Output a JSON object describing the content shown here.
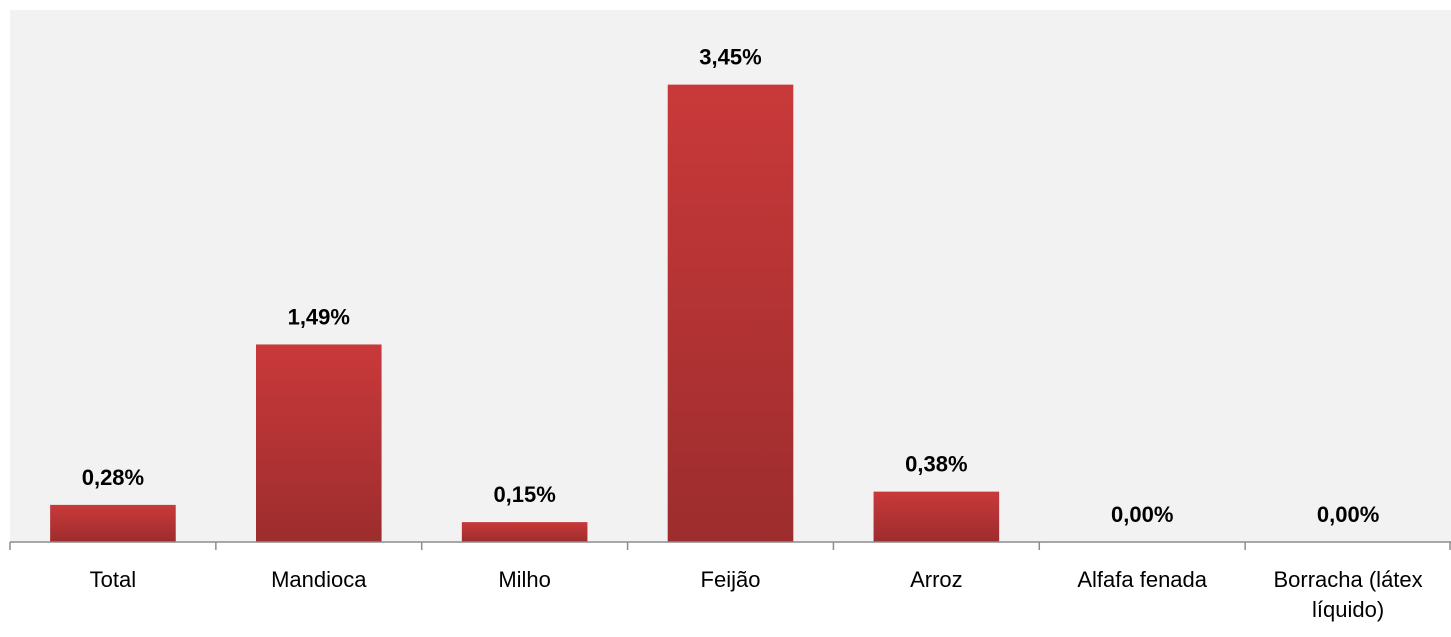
{
  "chart_data": {
    "type": "bar",
    "categories": [
      "Total",
      "Mandioca",
      "Milho",
      "Feijão",
      "Arroz",
      "Alfafa fenada",
      "Borracha (látex líquido)"
    ],
    "values": [
      0.28,
      1.49,
      0.15,
      3.45,
      0.38,
      0.0,
      0.0
    ],
    "value_labels": [
      "0,28%",
      "1,49%",
      "0,15%",
      "3,45%",
      "0,38%",
      "0,00%",
      "0,00%"
    ],
    "color": "#c9393a",
    "ylim": [
      0,
      3.5
    ]
  }
}
